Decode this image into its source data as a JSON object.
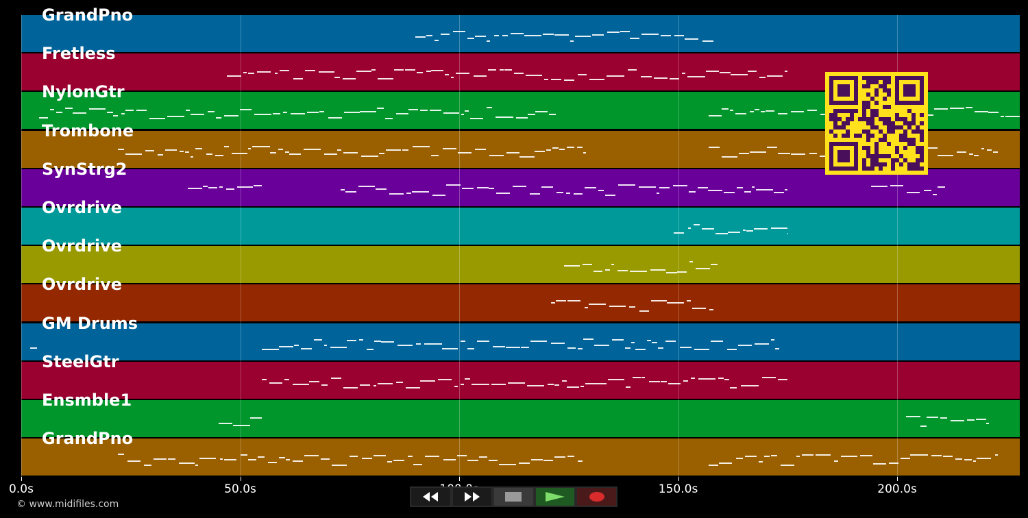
{
  "tracks": [
    {
      "name": "GrandPno",
      "color": "#00649a"
    },
    {
      "name": "Fretless",
      "color": "#9a0030"
    },
    {
      "name": "NylonGtr",
      "color": "#00962b"
    },
    {
      "name": "Trombone",
      "color": "#9a6000"
    },
    {
      "name": "SynStrg2",
      "color": "#6a009a"
    },
    {
      "name": "Ovrdrive",
      "color": "#00999a"
    },
    {
      "name": "Ovrdrive",
      "color": "#999a00"
    },
    {
      "name": "Ovrdrive",
      "color": "#942800"
    },
    {
      "name": "GM Drums",
      "color": "#00649a"
    },
    {
      "name": "SteelGtr",
      "color": "#9a0030"
    },
    {
      "name": "Ensmble1",
      "color": "#00962b"
    },
    {
      "name": "GrandPno",
      "color": "#9a6000"
    }
  ],
  "time_axis": {
    "ticks": [
      {
        "value": 0,
        "label": "0.0s"
      },
      {
        "value": 50,
        "label": "50.0s"
      },
      {
        "value": 100,
        "label": "100.0s"
      },
      {
        "value": 150,
        "label": "150.0s"
      },
      {
        "value": 200,
        "label": "200.0s"
      }
    ],
    "max_seconds": 228
  },
  "copyright": "© www.midifiles.com",
  "transport": {
    "rewind_icon": "rewind-icon",
    "forward_icon": "fast-forward-icon",
    "stop_icon": "stop-icon",
    "play_icon": "play-icon",
    "record_icon": "record-icon"
  },
  "note_ranges": [
    [
      [
        90,
        158
      ]
    ],
    [
      [
        47,
        175
      ]
    ],
    [
      [
        4,
        122
      ],
      [
        157,
        187
      ],
      [
        205,
        229
      ]
    ],
    [
      [
        22,
        129
      ],
      [
        157,
        223
      ]
    ],
    [
      [
        38,
        55
      ],
      [
        73,
        175
      ],
      [
        194,
        211
      ]
    ],
    [
      [
        149,
        175
      ]
    ],
    [
      [
        124,
        159
      ]
    ],
    [
      [
        121,
        158
      ]
    ],
    [
      [
        2,
        4
      ],
      [
        55,
        173
      ]
    ],
    [
      [
        55,
        175
      ]
    ],
    [
      [
        45,
        55
      ],
      [
        202,
        221
      ]
    ],
    [
      [
        22,
        129
      ],
      [
        157,
        223
      ]
    ]
  ]
}
